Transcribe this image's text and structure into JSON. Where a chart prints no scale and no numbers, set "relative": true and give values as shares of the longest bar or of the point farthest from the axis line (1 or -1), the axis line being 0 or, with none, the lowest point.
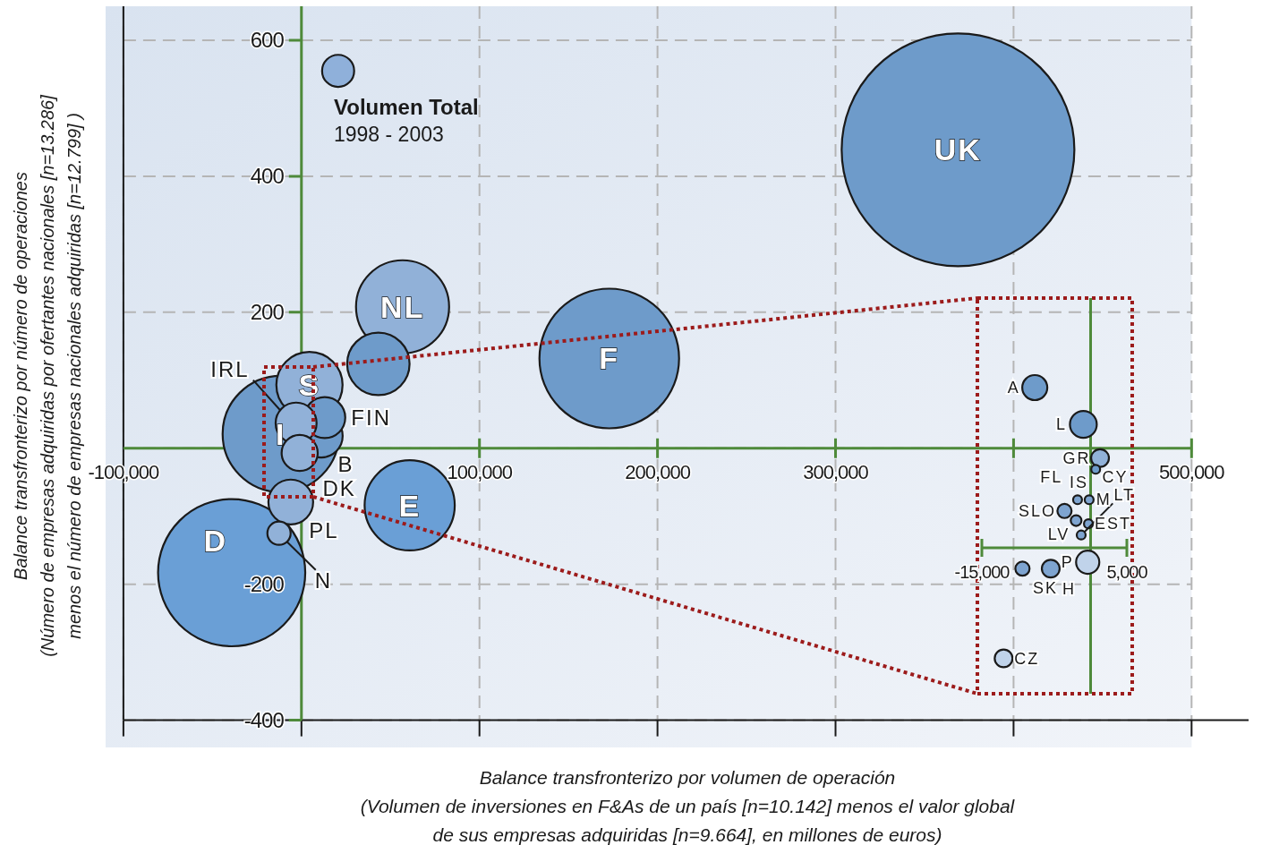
{
  "chart_data": [
    {
      "type": "bubble",
      "xlabel": "Balance transfronterizo por volumen de operación\n(Volumen de inversiones en F&As de un país [n=10.142] menos el valor global\nde sus empresas adquiridas  [n=9.664], en millones de euros)",
      "ylabel": "Balance transfronterizo por número de operaciones\n(Número  de empresas adquiridas por ofertantes nacionales  [n=13.286]\nmenos el  número de empresas nacionales adquiridas  [n=12.799] )",
      "x": [
        368800,
        -39200,
        172900,
        -11600,
        56800,
        60800,
        4500,
        43200,
        -6000,
        11100,
        13100,
        -3000,
        -1000,
        20600,
        -12600
      ],
      "values": [
        439,
        -183,
        132,
        21,
        208,
        -84,
        93,
        124,
        -79,
        18,
        45,
        37,
        -7,
        555,
        -125
      ],
      "sizes": [
        1,
        0.4,
        0.36,
        0.25,
        0.16,
        0.15,
        0.081,
        0.072,
        0.037,
        0.034,
        0.031,
        0.031,
        0.024,
        0.019,
        0.01
      ],
      "colors": [
        "#6e9bca",
        "#6a9fd6",
        "#6e9bca",
        "#6e9bca",
        "#91b1d8",
        "#6a9fd6",
        "#91b1d8",
        "#6e9bca",
        "#91b1d8",
        "#6e9bca",
        "#6e9bca",
        "#91b1d8",
        "#91b1d8",
        "#8fb0da",
        "#91b1d8"
      ],
      "xlim": [
        -110000,
        530000
      ],
      "ylim": [
        -440,
        650
      ],
      "xticks": [
        {
          "value": -100000,
          "label": "-100,000"
        },
        {
          "value": 0,
          "label": null
        },
        {
          "value": 100000,
          "label": "100,000"
        },
        {
          "value": 200000,
          "label": "200,000"
        },
        {
          "value": 300000,
          "label": "300,000"
        },
        {
          "value": 400000,
          "label": null
        },
        {
          "value": 500000,
          "label": "500,000"
        }
      ],
      "yticks": [
        600,
        400,
        200,
        {
          "value": 0,
          "label": null
        },
        -200,
        -400
      ],
      "grid": true,
      "ref_lines": [
        {
          "axis": "x",
          "value": 0,
          "color": "#4e8a3a"
        }
      ],
      "annotations": [
        "Volumen Total",
        "1998 - 2003",
        {
          "text": "UK",
          "x": 368800,
          "y": 439
        },
        {
          "text": "NL",
          "x": 56800,
          "y": 208
        },
        {
          "text": "F",
          "x": 172900,
          "y": 132
        },
        {
          "text": "S",
          "x": 4500,
          "y": 93
        },
        {
          "text": "E",
          "x": 60800,
          "y": -84
        },
        {
          "text": "D",
          "x": -39200,
          "y": -183
        },
        {
          "text": "I",
          "x": -11600,
          "y": 21
        },
        {
          "text": "FIN",
          "x": 13100,
          "y": 45
        },
        {
          "text": "B",
          "x": 11100,
          "y": 18
        },
        {
          "text": "PL",
          "x": -6000,
          "y": -79
        },
        {
          "text": "N",
          "x": -12600,
          "y": -125
        },
        {
          "text": "IRL",
          "x": -3000,
          "y": 37
        },
        {
          "text": "DK",
          "x": -1000,
          "y": -7
        }
      ]
    },
    {
      "type": "bubble",
      "relative": true,
      "x": [
        -7700,
        -1000,
        1300,
        700,
        -1800,
        -200,
        -3600,
        -2000,
        -300,
        -1300,
        -400,
        -9400,
        -5500,
        -12000
      ],
      "values": [
        1,
        0.77,
        0.56,
        0.49,
        0.3,
        0.3,
        0.23,
        0.17,
        0.15,
        0.08,
        -0.09,
        -0.13,
        -0.13,
        -0.69
      ],
      "sizes": [
        0.87,
        1,
        0.44,
        0.11,
        0.11,
        0.11,
        0.28,
        0.16,
        0.11,
        0.11,
        0.75,
        0.28,
        0.44,
        0.44
      ],
      "colors": [
        "#6e9bca",
        "#6e9bca",
        "#91b1d8",
        "#6e9bca",
        "#7ea4d0",
        "#7ea4d0",
        "#7ea4d0",
        "#7ea4d0",
        "#7ea4d0",
        "#7ea4d0",
        "#c0d3ea",
        "#7ea4d0",
        "#7ea4d0",
        "#c0d3ea"
      ],
      "xlim": [
        -15000,
        5000
      ],
      "xticks": [
        {
          "value": -15000,
          "label": "-15,000"
        },
        {
          "value": 5000,
          "label": "5,000"
        }
      ],
      "ref_lines": [
        {
          "axis": "x",
          "value": 0,
          "color": "#4e8a3a"
        },
        {
          "axis": "y",
          "value": 0,
          "color": "#4e8a3a"
        }
      ],
      "annotations": [
        {
          "text": "A",
          "x": -7700,
          "y": 1
        },
        {
          "text": "L",
          "x": -1000,
          "y": 0.77
        },
        {
          "text": "GR",
          "x": 1300,
          "y": 0.56
        },
        {
          "text": "IS",
          "x": 700,
          "y": 0.49
        },
        {
          "text": "P",
          "x": -400,
          "y": -0.09
        },
        {
          "text": "SK",
          "x": -9400,
          "y": -0.13
        },
        {
          "text": "H",
          "x": -5500,
          "y": -0.13
        },
        {
          "text": "CZ",
          "x": -12000,
          "y": -0.69
        },
        {
          "text": "SLO",
          "x": -3600,
          "y": 0.23
        },
        {
          "text": "M",
          "x": -1800,
          "y": 0.3
        },
        {
          "text": "FL",
          "x": -1800,
          "y": 0.3
        },
        {
          "text": "CY",
          "x": -200,
          "y": 0.3
        },
        {
          "text": "LV",
          "x": -2000,
          "y": 0.17
        },
        {
          "text": "EST",
          "x": -300,
          "y": 0.15
        },
        {
          "text": "LT",
          "x": -1300,
          "y": 0.08
        }
      ]
    }
  ]
}
